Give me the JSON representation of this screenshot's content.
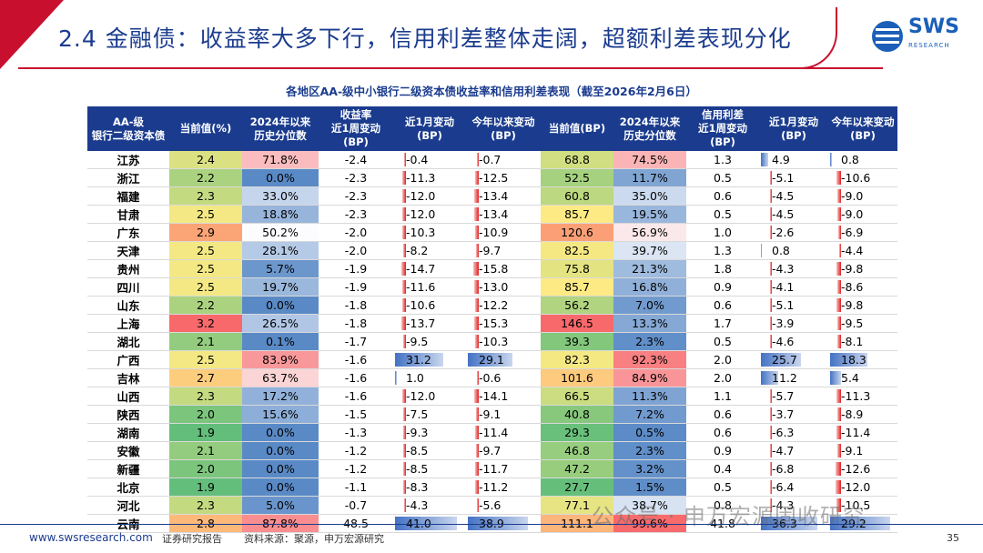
{
  "header": {
    "title": "2.4 金融债：收益率大多下行，信用利差整体走阔，超额利差表现分化"
  },
  "logo": {
    "main": "SWS",
    "sub": "RESEARCH"
  },
  "table_caption": "各地区AA-级中小银行二级资本债收益率和信用利差表现（截至2026年2月6日）",
  "columns": {
    "c0": "AA-级\n银行二级资本债",
    "c1": "当前值(%)",
    "c2": "2024年以来\n历史分位数",
    "c3": "收益率\n近1周变动\n(BP)",
    "c4": "近1月变动\n(BP)",
    "c5": "今年以来变动\n(BP)",
    "c6": "当前值(BP)",
    "c7": "2024年以来\n历史分位数",
    "c8": "信用利差\n近1周变动\n(BP)",
    "c9": "近1月变动\n(BP)",
    "c10": "今年以来变动\n(BP)"
  },
  "rows": [
    [
      "江苏",
      "2.4",
      "71.8%",
      "-2.4",
      "-0.4",
      "-0.7",
      "68.8",
      "74.5%",
      "1.3",
      "4.9",
      "0.8"
    ],
    [
      "浙江",
      "2.2",
      "0.0%",
      "-2.3",
      "-11.3",
      "-12.5",
      "52.5",
      "11.7%",
      "0.5",
      "-5.1",
      "-10.6"
    ],
    [
      "福建",
      "2.3",
      "33.0%",
      "-2.3",
      "-12.0",
      "-13.4",
      "60.8",
      "35.0%",
      "0.6",
      "-4.5",
      "-9.0"
    ],
    [
      "甘肃",
      "2.5",
      "18.8%",
      "-2.3",
      "-12.0",
      "-13.4",
      "85.7",
      "19.5%",
      "0.5",
      "-4.5",
      "-9.0"
    ],
    [
      "广东",
      "2.9",
      "50.2%",
      "-2.0",
      "-10.3",
      "-10.9",
      "120.6",
      "56.9%",
      "1.0",
      "-2.6",
      "-6.9"
    ],
    [
      "天津",
      "2.5",
      "28.1%",
      "-2.0",
      "-8.2",
      "-9.7",
      "82.5",
      "39.7%",
      "1.3",
      "0.8",
      "-4.4"
    ],
    [
      "贵州",
      "2.5",
      "5.7%",
      "-1.9",
      "-14.7",
      "-15.8",
      "75.8",
      "21.3%",
      "1.8",
      "-4.3",
      "-9.8"
    ],
    [
      "四川",
      "2.5",
      "19.7%",
      "-1.9",
      "-11.6",
      "-13.0",
      "85.7",
      "16.8%",
      "0.9",
      "-4.1",
      "-8.6"
    ],
    [
      "山东",
      "2.2",
      "0.0%",
      "-1.8",
      "-10.6",
      "-12.2",
      "56.2",
      "7.0%",
      "0.6",
      "-5.1",
      "-9.8"
    ],
    [
      "上海",
      "3.2",
      "26.5%",
      "-1.8",
      "-13.7",
      "-15.3",
      "146.5",
      "13.3%",
      "1.7",
      "-3.9",
      "-9.5"
    ],
    [
      "湖北",
      "2.1",
      "0.1%",
      "-1.7",
      "-9.5",
      "-10.3",
      "39.3",
      "2.3%",
      "0.5",
      "-4.6",
      "-8.1"
    ],
    [
      "广西",
      "2.5",
      "83.9%",
      "-1.6",
      "31.2",
      "29.1",
      "82.3",
      "92.3%",
      "2.0",
      "25.7",
      "18.3"
    ],
    [
      "吉林",
      "2.7",
      "63.7%",
      "-1.6",
      "1.0",
      "-0.6",
      "101.6",
      "84.9%",
      "2.0",
      "11.2",
      "5.4"
    ],
    [
      "山西",
      "2.3",
      "17.2%",
      "-1.6",
      "-12.0",
      "-14.1",
      "66.5",
      "11.3%",
      "1.1",
      "-5.7",
      "-11.3"
    ],
    [
      "陕西",
      "2.0",
      "15.6%",
      "-1.5",
      "-7.5",
      "-9.1",
      "40.8",
      "7.2%",
      "0.6",
      "-3.7",
      "-8.9"
    ],
    [
      "湖南",
      "1.9",
      "0.0%",
      "-1.3",
      "-9.3",
      "-11.4",
      "29.3",
      "0.5%",
      "0.6",
      "-6.3",
      "-11.4"
    ],
    [
      "安徽",
      "2.1",
      "0.0%",
      "-1.2",
      "-8.5",
      "-9.7",
      "46.8",
      "2.3%",
      "0.9",
      "-4.7",
      "-9.1"
    ],
    [
      "新疆",
      "2.0",
      "0.0%",
      "-1.2",
      "-8.5",
      "-11.7",
      "47.2",
      "3.2%",
      "0.4",
      "-6.8",
      "-12.6"
    ],
    [
      "北京",
      "1.9",
      "0.0%",
      "-1.1",
      "-8.3",
      "-11.2",
      "27.7",
      "1.5%",
      "0.5",
      "-6.4",
      "-12.0"
    ],
    [
      "河北",
      "2.3",
      "5.0%",
      "-0.7",
      "-4.3",
      "-5.6",
      "77.1",
      "38.7%",
      "0.8",
      "-4.3",
      "-10.5"
    ],
    [
      "云南",
      "2.8",
      "87.8%",
      "48.5",
      "41.0",
      "38.9",
      "111.1",
      "99.6%",
      "41.8",
      "36.3",
      "29.2"
    ]
  ],
  "colors": {
    "navy": "#1b3c8e",
    "red": "#c8102e"
  },
  "watermark": "公众号 · 申万宏源固收研究",
  "footer": {
    "site": "www.swsresearch.com",
    "type": "证券研究报告",
    "source": "资料来源：聚源，申万宏源研究",
    "page": "35"
  }
}
